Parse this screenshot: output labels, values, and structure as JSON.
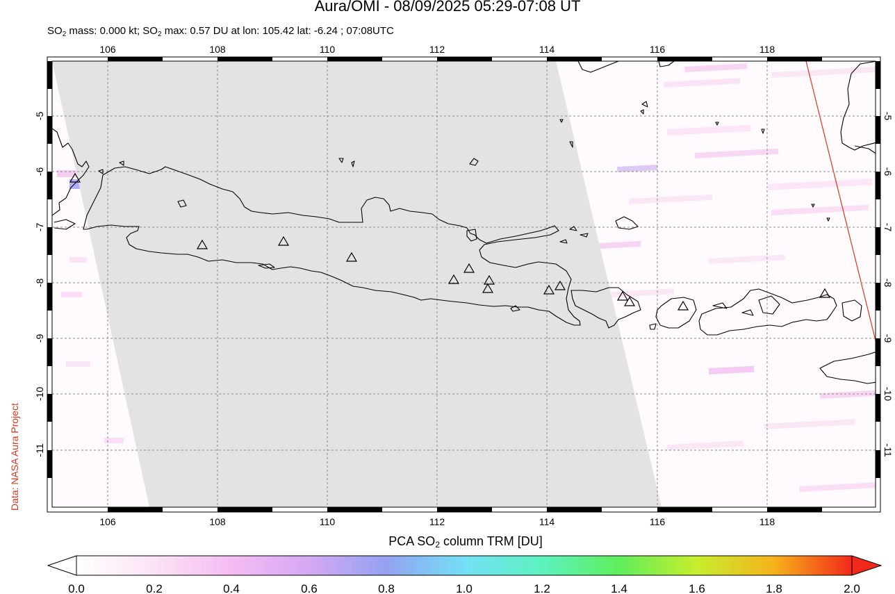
{
  "title": "Aura/OMI - 08/09/2025 05:29-07:08 UT",
  "subtitle": {
    "mass_prefix": "SO",
    "mass_sub": "2",
    "mass_text": " mass: 0.000 kt; SO",
    "max_sub": "2",
    "max_text": " max: 0.57 DU at lon: 105.42 lat: -6.24 ; 07:08UTC"
  },
  "credit": "Data: NASA Aura Project",
  "map": {
    "lon_ticks": [
      "106",
      "108",
      "110",
      "112",
      "114",
      "116",
      "118"
    ],
    "lat_ticks": [
      "-5",
      "-6",
      "-7",
      "-8",
      "-9",
      "-10",
      "-11"
    ],
    "volcano_marker": "triangle-icon",
    "no_data_color": "#e3e3e3",
    "coast_color": "#000000",
    "orbit_line_color": "#d9361c"
  },
  "colorbar": {
    "title_prefix": "PCA SO",
    "title_sub": "2",
    "title_suffix": " column TRM [DU]",
    "ticks": [
      "0.0",
      "0.2",
      "0.4",
      "0.6",
      "0.8",
      "1.0",
      "1.2",
      "1.4",
      "1.6",
      "1.8",
      "2.0"
    ],
    "colors": [
      "#ffffff",
      "#fbd6f2",
      "#f3b6f5",
      "#c5a2f4",
      "#8ea6f2",
      "#6ee6f6",
      "#5cf2b0",
      "#63ec52",
      "#cbee2c",
      "#f6b81b",
      "#f2281a"
    ]
  }
}
